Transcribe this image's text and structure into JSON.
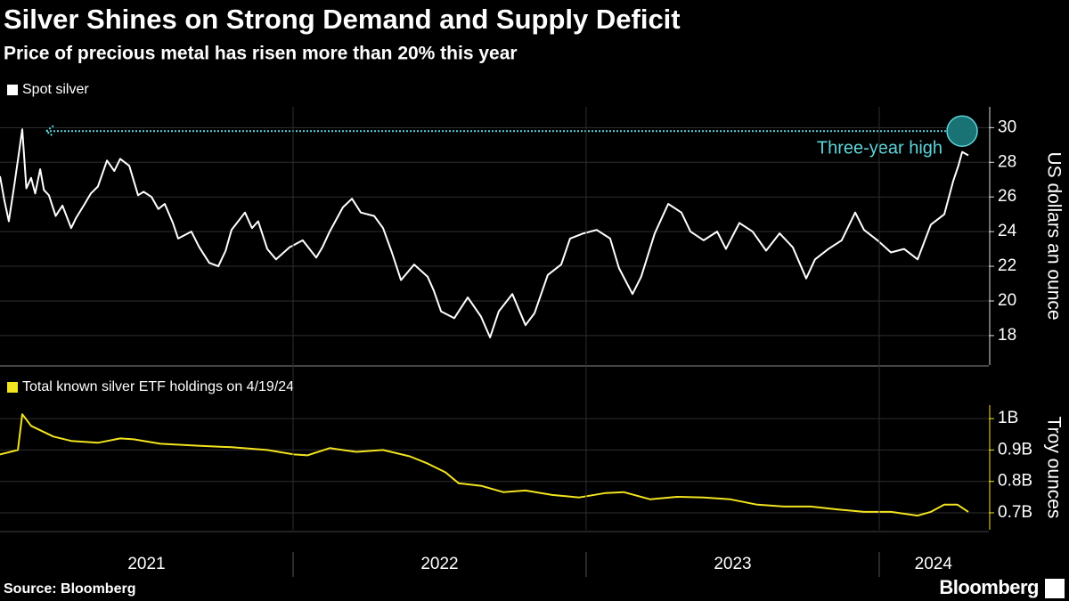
{
  "title": "Silver Shines on Strong Demand and Supply Deficit",
  "subtitle": "Price of precious metal has risen more than 20% this year",
  "source": "Source: Bloomberg",
  "logo": "Bloomberg",
  "chart_data": [
    {
      "type": "line",
      "y_axis_label": "US dollars an ounce",
      "grid": true,
      "xlim": [
        2021.0,
        2024.374
      ],
      "ylim": [
        16.3,
        31.2
      ],
      "yticks": [
        18,
        20,
        22,
        24,
        26,
        28,
        30
      ],
      "series": [
        {
          "name": "Spot silver",
          "color": "#ffffff",
          "x": [
            2021.0,
            2021.015,
            2021.03,
            2021.05,
            2021.076,
            2021.09,
            2021.106,
            2021.12,
            2021.137,
            2021.15,
            2021.167,
            2021.19,
            2021.213,
            2021.243,
            2021.26,
            2021.289,
            2021.31,
            2021.334,
            2021.365,
            2021.39,
            2021.41,
            2021.441,
            2021.471,
            2021.49,
            2021.517,
            2021.54,
            2021.562,
            2021.59,
            2021.608,
            2021.653,
            2021.68,
            2021.714,
            2021.745,
            2021.77,
            2021.79,
            2021.836,
            2021.86,
            2021.881,
            2021.912,
            2021.942,
            2021.988,
            2022.033,
            2022.079,
            2022.1,
            2022.125,
            2022.17,
            2022.201,
            2022.231,
            2022.277,
            2022.307,
            2022.337,
            2022.368,
            2022.413,
            2022.459,
            2022.48,
            2022.505,
            2022.55,
            2022.596,
            2022.641,
            2022.672,
            2022.702,
            2022.748,
            2022.793,
            2022.824,
            2022.869,
            2022.915,
            2022.945,
            2022.991,
            2023.036,
            2023.082,
            2023.112,
            2023.158,
            2023.188,
            2023.234,
            2023.28,
            2023.325,
            2023.356,
            2023.401,
            2023.447,
            2023.477,
            2023.523,
            2023.568,
            2023.614,
            2023.66,
            2023.705,
            2023.751,
            2023.781,
            2023.827,
            2023.872,
            2023.918,
            2023.948,
            2023.994,
            2024.04,
            2024.085,
            2024.131,
            2024.176,
            2024.222,
            2024.252,
            2024.27,
            2024.283,
            2024.304
          ],
          "values": [
            27.2,
            25.8,
            24.6,
            26.8,
            29.9,
            26.5,
            27.1,
            26.2,
            27.6,
            26.4,
            26.1,
            24.9,
            25.5,
            24.2,
            24.8,
            25.6,
            26.2,
            26.6,
            28.1,
            27.5,
            28.2,
            27.8,
            26.1,
            26.3,
            26.0,
            25.3,
            25.6,
            24.5,
            23.6,
            24.0,
            23.1,
            22.2,
            22.0,
            22.9,
            24.1,
            25.1,
            24.2,
            24.6,
            23.0,
            22.4,
            23.1,
            23.5,
            22.5,
            23.1,
            24.0,
            25.4,
            25.9,
            25.1,
            24.9,
            24.2,
            22.8,
            21.2,
            22.1,
            21.4,
            20.6,
            19.4,
            19.0,
            20.2,
            19.1,
            17.9,
            19.4,
            20.4,
            18.6,
            19.3,
            21.5,
            22.1,
            23.6,
            23.9,
            24.1,
            23.6,
            21.9,
            20.4,
            21.4,
            23.9,
            25.6,
            25.1,
            24.0,
            23.5,
            24.0,
            23.0,
            24.5,
            24.0,
            22.9,
            23.9,
            23.1,
            21.3,
            22.4,
            23.0,
            23.5,
            25.1,
            24.1,
            23.5,
            22.8,
            23.0,
            22.4,
            24.4,
            25.0,
            26.9,
            27.8,
            28.6,
            28.4
          ]
        }
      ],
      "annotation": {
        "text": "Three-year high",
        "x": 2024.283,
        "value": 29.8
      }
    },
    {
      "type": "line",
      "y_axis_label": "Troy ounces",
      "grid": true,
      "xlim": [
        2021.0,
        2024.374
      ],
      "ylim": [
        646000000,
        1043000000
      ],
      "yticks": [
        {
          "value": 700000000,
          "label": "0.7B"
        },
        {
          "value": 800000000,
          "label": "0.8B"
        },
        {
          "value": 900000000,
          "label": "0.9B"
        },
        {
          "value": 1000000000,
          "label": "1B"
        }
      ],
      "xticks": [
        {
          "value": 2021.5,
          "label": "2021"
        },
        {
          "value": 2022.5,
          "label": "2022"
        },
        {
          "value": 2023.5,
          "label": "2023"
        },
        {
          "value": 2024.185,
          "label": "2024"
        }
      ],
      "series": [
        {
          "name": "Total known silver ETF holdings on 4/19/24",
          "color": "#f3e41f",
          "x": [
            2021.0,
            2021.061,
            2021.076,
            2021.106,
            2021.182,
            2021.243,
            2021.334,
            2021.41,
            2021.456,
            2021.547,
            2021.669,
            2021.79,
            2021.912,
            2022.003,
            2022.049,
            2022.125,
            2022.216,
            2022.307,
            2022.398,
            2022.459,
            2022.52,
            2022.565,
            2022.641,
            2022.717,
            2022.793,
            2022.884,
            2022.976,
            2023.067,
            2023.128,
            2023.219,
            2023.31,
            2023.401,
            2023.492,
            2023.584,
            2023.675,
            2023.766,
            2023.857,
            2023.948,
            2024.04,
            2024.131,
            2024.176,
            2024.222,
            2024.267,
            2024.304
          ],
          "values": [
            886000000,
            900000000,
            1014000000,
            977000000,
            943000000,
            929000000,
            923000000,
            937000000,
            934000000,
            920000000,
            914000000,
            909000000,
            900000000,
            886000000,
            883000000,
            906000000,
            894000000,
            900000000,
            880000000,
            857000000,
            829000000,
            794000000,
            786000000,
            766000000,
            771000000,
            757000000,
            749000000,
            763000000,
            766000000,
            743000000,
            751000000,
            749000000,
            743000000,
            726000000,
            720000000,
            720000000,
            711000000,
            703000000,
            703000000,
            691000000,
            703000000,
            726000000,
            726000000,
            703000000
          ]
        }
      ]
    }
  ]
}
